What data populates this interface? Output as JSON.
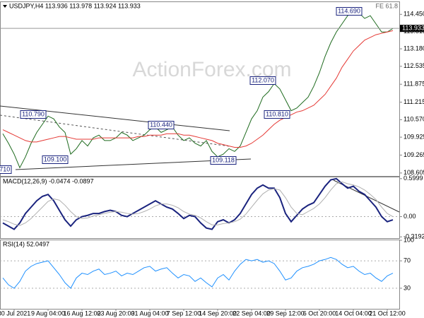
{
  "chart_data": [
    {
      "type": "line",
      "title": "USDJPY,H4 113.936 113.978 113.924 113.933",
      "fe_label": "FE 61.8",
      "watermark": "ActionForex.com",
      "ylim": [
        108.47,
        114.9
      ],
      "yticks": [
        {
          "value": 114.45,
          "label": "114.450"
        },
        113.815,
        {
          "value": 113.18,
          "label": "113.180"
        },
        112.535,
        111.875,
        111.215,
        {
          "value": 110.57,
          "label": "110.570"
        },
        109.925,
        109.265,
        108.605
      ],
      "last_price": {
        "value": 113.933,
        "label": "113.933"
      },
      "annotations": [
        "110.790",
        "109.100",
        "110.440",
        "109.118",
        "112.070",
        "110.810",
        "114.690",
        "108.710"
      ],
      "series": [
        {
          "color": "#1f6b1f",
          "values": [
            110.05,
            109.7,
            109.3,
            108.8,
            109.2,
            109.7,
            110.1,
            110.4,
            110.7,
            110.6,
            110.3,
            110.1,
            109.3,
            109.5,
            109.8,
            109.6,
            109.9,
            110.0,
            109.8,
            109.8,
            109.9,
            110.1,
            110.0,
            109.8,
            109.9,
            110.0,
            110.2,
            110.3,
            110.1,
            110.2,
            110.3,
            110.0,
            109.8,
            109.9,
            109.7,
            109.6,
            109.8,
            109.4,
            109.2,
            109.3,
            109.5,
            109.4,
            109.6,
            110.1,
            110.6,
            110.9,
            111.4,
            111.6,
            111.9,
            111.7,
            111.3,
            110.9,
            111.0,
            111.2,
            111.4,
            111.8,
            112.3,
            112.9,
            113.4,
            113.8,
            114.1,
            114.4,
            114.6,
            114.5,
            114.3,
            114.4,
            114.1,
            113.8,
            113.8,
            113.93
          ]
        },
        {
          "color": "#e53935",
          "values": [
            110.2,
            110.1,
            110.0,
            109.9,
            109.8,
            109.75,
            109.75,
            109.8,
            109.85,
            109.9,
            109.95,
            109.95,
            109.9,
            109.85,
            109.85,
            109.85,
            109.85,
            109.9,
            109.9,
            109.9,
            109.9,
            109.9,
            109.9,
            109.9,
            109.95,
            109.95,
            110.0,
            110.0,
            110.0,
            110.05,
            110.05,
            110.05,
            110.0,
            110.0,
            109.95,
            109.9,
            109.85,
            109.8,
            109.7,
            109.65,
            109.6,
            109.55,
            109.55,
            109.6,
            109.7,
            109.85,
            110.0,
            110.2,
            110.4,
            110.55,
            110.65,
            110.75,
            110.85,
            110.9,
            111.0,
            111.1,
            111.3,
            111.5,
            111.8,
            112.1,
            112.5,
            112.8,
            113.1,
            113.3,
            113.5,
            113.6,
            113.7,
            113.75,
            113.8,
            113.85
          ]
        }
      ]
    },
    {
      "type": "line",
      "title": "MACD(12,26,9) -0.0474 -0.0897",
      "ylim": [
        -0.34,
        0.62
      ],
      "yticks": [
        0.5999,
        {
          "value": 0,
          "label": "0.00"
        },
        -0.3192
      ],
      "series": [
        {
          "color": "#1a237e",
          "values": [
            -0.1,
            -0.15,
            -0.2,
            -0.1,
            0.05,
            0.15,
            0.25,
            0.32,
            0.35,
            0.25,
            0.1,
            -0.05,
            -0.15,
            -0.05,
            0.0,
            0.02,
            0.05,
            0.05,
            0.08,
            0.1,
            0.08,
            0.02,
            0.0,
            0.05,
            0.1,
            0.15,
            0.2,
            0.25,
            0.2,
            0.15,
            0.12,
            0.05,
            -0.03,
            0.02,
            0.0,
            -0.1,
            -0.18,
            -0.2,
            -0.08,
            -0.05,
            -0.1,
            -0.05,
            0.05,
            0.2,
            0.35,
            0.45,
            0.5,
            0.45,
            0.45,
            0.3,
            0.05,
            -0.08,
            0.02,
            0.12,
            0.18,
            0.22,
            0.35,
            0.48,
            0.58,
            0.6,
            0.52,
            0.45,
            0.48,
            0.4,
            0.35,
            0.25,
            0.15,
            0.0,
            -0.08,
            -0.05
          ]
        },
        {
          "color": "#b0b0b0",
          "values": [
            -0.05,
            -0.08,
            -0.12,
            -0.14,
            -0.1,
            -0.03,
            0.06,
            0.15,
            0.24,
            0.28,
            0.26,
            0.18,
            0.08,
            0.0,
            -0.03,
            -0.02,
            0.01,
            0.03,
            0.05,
            0.07,
            0.08,
            0.07,
            0.05,
            0.04,
            0.05,
            0.08,
            0.12,
            0.17,
            0.2,
            0.2,
            0.18,
            0.14,
            0.08,
            0.04,
            0.02,
            -0.02,
            -0.08,
            -0.13,
            -0.13,
            -0.11,
            -0.1,
            -0.08,
            -0.04,
            0.04,
            0.15,
            0.26,
            0.36,
            0.42,
            0.44,
            0.42,
            0.3,
            0.15,
            0.05,
            0.03,
            0.08,
            0.13,
            0.2,
            0.3,
            0.42,
            0.52,
            0.55,
            0.52,
            0.5,
            0.47,
            0.42,
            0.35,
            0.27,
            0.15,
            0.05,
            0.0
          ]
        }
      ]
    },
    {
      "type": "line",
      "title": "RSI(14) 52.0497",
      "ylim": [
        0,
        100
      ],
      "yticks": [
        100,
        70,
        30
      ],
      "categories": [
        null,
        null,
        "30 Jul 2021",
        null,
        null,
        null,
        null,
        null,
        "9 Aug 04:00",
        null,
        null,
        null,
        null,
        null,
        "16 Aug 12:00",
        null,
        null,
        null,
        null,
        null,
        "23 Aug 20:00",
        null,
        null,
        null,
        null,
        null,
        "31 Aug 04:00",
        null,
        null,
        null,
        null,
        null,
        "7 Sep 12:00",
        null,
        null,
        null,
        null,
        null,
        "14 Sep 20:00",
        null,
        null,
        null,
        null,
        null,
        "22 Sep 04:00",
        null,
        null,
        null,
        null,
        null,
        "29 Sep 12:00",
        null,
        null,
        null,
        null,
        null,
        "6 Oct 20:00",
        null,
        null,
        null,
        null,
        null,
        "14 Oct 04:00",
        null,
        null,
        null,
        null,
        null,
        "21 Oct 12:00",
        null
      ],
      "series": [
        {
          "color": "#1e90ff",
          "values": [
            45,
            35,
            30,
            40,
            55,
            62,
            66,
            68,
            70,
            60,
            50,
            38,
            30,
            45,
            52,
            50,
            55,
            58,
            50,
            52,
            55,
            48,
            52,
            50,
            55,
            60,
            62,
            55,
            58,
            60,
            52,
            45,
            50,
            48,
            40,
            45,
            38,
            32,
            45,
            50,
            42,
            55,
            65,
            72,
            70,
            72,
            68,
            70,
            66,
            55,
            42,
            45,
            55,
            60,
            62,
            65,
            70,
            72,
            75,
            72,
            65,
            60,
            62,
            55,
            50,
            52,
            45,
            40,
            48,
            52
          ]
        }
      ]
    }
  ]
}
